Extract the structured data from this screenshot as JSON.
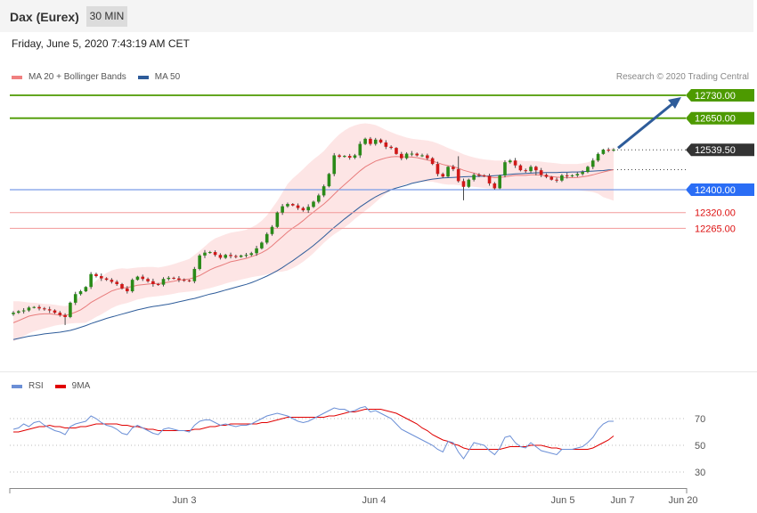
{
  "header": {
    "instrument": "Dax (Eurex)",
    "timeframe": "30 MIN"
  },
  "timestamp": "Friday, June 5, 2020 7:43:19 AM CET",
  "credit": "Research © 2020 Trading Central",
  "legend": {
    "price": [
      {
        "name": "MA 20 + Bollinger Bands",
        "color": "#f08080"
      },
      {
        "name": "MA 50",
        "color": "#2e5c9a"
      }
    ],
    "rsi": [
      {
        "name": "RSI",
        "color": "#6b8fd6"
      },
      {
        "name": "9MA",
        "color": "#e00000"
      }
    ]
  },
  "chart_data": [
    {
      "type": "candlestick",
      "ylim": [
        11870,
        12760
      ],
      "x_labels": [
        "Jun 3",
        "Jun 4",
        "Jun 5",
        "Jun 7",
        "Jun 20"
      ],
      "last_price": 12539.5,
      "levels": [
        {
          "value": 12730.0,
          "label": "12730.00",
          "kind": "resistance"
        },
        {
          "value": 12650.0,
          "label": "12650.00",
          "kind": "resistance"
        },
        {
          "value": 12400.0,
          "label": "12400.00",
          "kind": "pivot"
        },
        {
          "value": 12320.0,
          "label": "12320.00",
          "kind": "support"
        },
        {
          "value": 12265.0,
          "label": "12265.00",
          "kind": "support"
        }
      ],
      "last_price_label": "12539.50",
      "forecast_target": 12730.0,
      "close": [
        11970,
        11975,
        11978,
        11988,
        11990,
        11985,
        11982,
        11978,
        11970,
        11962,
        11955,
        12005,
        12035,
        12045,
        12060,
        12105,
        12098,
        12090,
        12085,
        12078,
        12070,
        12055,
        12045,
        12085,
        12096,
        12088,
        12080,
        12070,
        12068,
        12088,
        12092,
        12090,
        12085,
        12083,
        12080,
        12123,
        12170,
        12180,
        12182,
        12172,
        12162,
        12172,
        12168,
        12165,
        12170,
        12172,
        12178,
        12195,
        12215,
        12245,
        12270,
        12320,
        12342,
        12350,
        12345,
        12336,
        12328,
        12340,
        12358,
        12380,
        12412,
        12455,
        12520,
        12515,
        12518,
        12512,
        12520,
        12560,
        12578,
        12560,
        12575,
        12565,
        12550,
        12546,
        12525,
        12510,
        12526,
        12526,
        12520,
        12520,
        12510,
        12490,
        12455,
        12446,
        12480,
        12472,
        12430,
        12410,
        12435,
        12452,
        12450,
        12448,
        12422,
        12405,
        12450,
        12496,
        12502,
        12485,
        12468,
        12465,
        12480,
        12468,
        12452,
        12445,
        12435,
        12432,
        12450,
        12448,
        12450,
        12455,
        12462,
        12480,
        12502,
        12525,
        12540,
        12538,
        12540
      ],
      "ma20": [
        11935,
        11942,
        11950,
        11958,
        11962,
        11965,
        11966,
        11966,
        11964,
        11962,
        11960,
        11965,
        11972,
        11980,
        11992,
        12006,
        12016,
        12026,
        12036,
        12046,
        12052,
        12056,
        12058,
        12062,
        12066,
        12068,
        12070,
        12072,
        12072,
        12074,
        12077,
        12080,
        12084,
        12086,
        12088,
        12093,
        12100,
        12110,
        12120,
        12128,
        12134,
        12141,
        12148,
        12152,
        12156,
        12160,
        12166,
        12172,
        12180,
        12190,
        12204,
        12220,
        12236,
        12252,
        12266,
        12278,
        12292,
        12308,
        12322,
        12336,
        12350,
        12366,
        12384,
        12402,
        12418,
        12434,
        12450,
        12466,
        12480,
        12490,
        12500,
        12506,
        12511,
        12515,
        12516,
        12515,
        12515,
        12514,
        12512,
        12508,
        12504,
        12500,
        12494,
        12488,
        12484,
        12481,
        12475,
        12468,
        12463,
        12458,
        12453,
        12448,
        12444,
        12442,
        12443,
        12445,
        12448,
        12450,
        12450,
        12450,
        12452,
        12452,
        12451,
        12448,
        12446,
        12444,
        12443,
        12442,
        12442,
        12443,
        12445,
        12448,
        12452,
        12457,
        12462,
        12466,
        12470
      ],
      "bb_upper": [
        12010,
        12010,
        12008,
        12006,
        12005,
        12003,
        12001,
        12000,
        11998,
        11995,
        11993,
        11998,
        12010,
        12030,
        12050,
        12065,
        12082,
        12096,
        12109,
        12118,
        12123,
        12125,
        12124,
        12126,
        12128,
        12129,
        12130,
        12130,
        12128,
        12131,
        12135,
        12140,
        12146,
        12152,
        12158,
        12172,
        12186,
        12202,
        12218,
        12230,
        12237,
        12244,
        12250,
        12253,
        12256,
        12260,
        12268,
        12278,
        12292,
        12310,
        12335,
        12360,
        12390,
        12420,
        12440,
        12455,
        12472,
        12490,
        12506,
        12520,
        12535,
        12556,
        12576,
        12594,
        12607,
        12618,
        12625,
        12630,
        12632,
        12630,
        12626,
        12618,
        12609,
        12601,
        12594,
        12588,
        12582,
        12578,
        12576,
        12574,
        12572,
        12568,
        12562,
        12554,
        12546,
        12539,
        12532,
        12524,
        12518,
        12513,
        12509,
        12506,
        12504,
        12502,
        12502,
        12502,
        12502,
        12502,
        12502,
        12500,
        12501,
        12500,
        12498,
        12496,
        12494,
        12492,
        12490,
        12490,
        12490,
        12490,
        12492,
        12496,
        12502,
        12515,
        12530,
        12540,
        12548
      ],
      "bb_lower": [
        11870,
        11878,
        11888,
        11898,
        11905,
        11910,
        11915,
        11920,
        11925,
        11928,
        11930,
        11932,
        11934,
        11934,
        11935,
        11945,
        11955,
        11964,
        11975,
        11986,
        11994,
        12000,
        12004,
        12010,
        12016,
        12020,
        12024,
        12026,
        12028,
        12030,
        12033,
        12036,
        12040,
        12042,
        12044,
        12046,
        12048,
        12052,
        12056,
        12061,
        12066,
        12072,
        12077,
        12081,
        12086,
        12090,
        12094,
        12097,
        12100,
        12104,
        12108,
        12112,
        12114,
        12118,
        12126,
        12136,
        12148,
        12162,
        12178,
        12196,
        12214,
        12230,
        12244,
        12256,
        12268,
        12282,
        12298,
        12312,
        12326,
        12340,
        12356,
        12372,
        12386,
        12398,
        12408,
        12414,
        12420,
        12424,
        12426,
        12428,
        12428,
        12428,
        12424,
        12420,
        12418,
        12418,
        12416,
        12414,
        12412,
        12410,
        12408,
        12406,
        12404,
        12402,
        12400,
        12400,
        12400,
        12400,
        12400,
        12400,
        12400,
        12400,
        12400,
        12400,
        12400,
        12400,
        12400,
        12398,
        12398,
        12398,
        12396,
        12394,
        12392,
        12386,
        12374,
        12368,
        12362
      ],
      "ma50": [
        11876,
        11880,
        11884,
        11888,
        11890,
        11893,
        11896,
        11898,
        11900,
        11902,
        11905,
        11908,
        11913,
        11919,
        11925,
        11932,
        11938,
        11944,
        11950,
        11955,
        11960,
        11965,
        11970,
        11975,
        11980,
        11984,
        11988,
        11992,
        11994,
        11997,
        12000,
        12004,
        12008,
        12012,
        12016,
        12020,
        12025,
        12030,
        12035,
        12039,
        12044,
        12049,
        12054,
        12059,
        12064,
        12069,
        12075,
        12082,
        12090,
        12098,
        12107,
        12117,
        12128,
        12140,
        12152,
        12165,
        12178,
        12191,
        12205,
        12220,
        12236,
        12252,
        12268,
        12283,
        12298,
        12312,
        12326,
        12340,
        12352,
        12364,
        12375,
        12384,
        12392,
        12400,
        12406,
        12411,
        12416,
        12422,
        12426,
        12430,
        12434,
        12437,
        12439,
        12441,
        12442,
        12443,
        12444,
        12445,
        12446,
        12446,
        12447,
        12447,
        12448,
        12449,
        12450,
        12452,
        12454,
        12455,
        12456,
        12457,
        12458,
        12459,
        12459,
        12460,
        12460,
        12460,
        12461,
        12461,
        12462,
        12462,
        12463,
        12464,
        12465,
        12466,
        12467,
        12469,
        12470
      ]
    },
    {
      "type": "line",
      "title": "RSI",
      "y_ticks": [
        70,
        50,
        30
      ],
      "ylim": [
        18,
        88
      ],
      "series": [
        {
          "name": "RSI",
          "values": [
            62,
            63,
            66,
            64,
            67,
            68,
            65,
            63,
            61,
            60,
            58,
            64,
            66,
            67,
            68,
            72,
            70,
            67,
            65,
            64,
            62,
            59,
            58,
            63,
            65,
            63,
            61,
            59,
            58,
            62,
            63,
            62,
            61,
            61,
            60,
            65,
            68,
            69,
            69,
            67,
            65,
            66,
            65,
            64,
            65,
            65,
            66,
            68,
            70,
            72,
            73,
            74,
            73,
            72,
            70,
            68,
            67,
            68,
            70,
            72,
            74,
            76,
            78,
            77,
            77,
            75,
            76,
            78,
            79,
            75,
            76,
            74,
            72,
            70,
            66,
            62,
            60,
            58,
            56,
            54,
            52,
            50,
            47,
            45,
            53,
            52,
            45,
            40,
            46,
            52,
            51,
            50,
            46,
            43,
            48,
            56,
            57,
            52,
            49,
            48,
            52,
            49,
            46,
            45,
            44,
            43,
            47,
            47,
            47,
            48,
            49,
            52,
            56,
            62,
            66,
            68,
            68
          ]
        },
        {
          "name": "9MA",
          "values": [
            60,
            60,
            61,
            62,
            63,
            64,
            64,
            65,
            64,
            64,
            63,
            63,
            63,
            64,
            64,
            65,
            66,
            66,
            66,
            66,
            66,
            65,
            65,
            64,
            64,
            63,
            62,
            62,
            61,
            61,
            61,
            61,
            61,
            61,
            61,
            62,
            62,
            63,
            64,
            64,
            65,
            65,
            66,
            66,
            66,
            66,
            66,
            66,
            67,
            67,
            68,
            69,
            70,
            71,
            71,
            71,
            71,
            71,
            71,
            71,
            71,
            72,
            72,
            73,
            74,
            75,
            75,
            76,
            77,
            77,
            77,
            77,
            76,
            75,
            74,
            72,
            70,
            68,
            66,
            63,
            61,
            58,
            56,
            54,
            53,
            51,
            50,
            48,
            47,
            47,
            47,
            47,
            47,
            47,
            47,
            48,
            49,
            49,
            49,
            49,
            50,
            50,
            50,
            49,
            48,
            48,
            47,
            47,
            47,
            47,
            47,
            47,
            48,
            50,
            52,
            54,
            57
          ]
        }
      ]
    }
  ]
}
